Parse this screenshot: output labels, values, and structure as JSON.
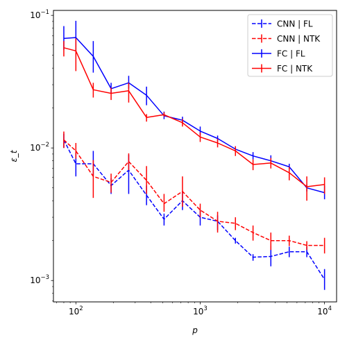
{
  "chart_data": {
    "type": "line",
    "title": "",
    "xlabel": "p",
    "ylabel": "ε_t",
    "xscale": "log",
    "yscale": "log",
    "xlim": [
      66,
      12500
    ],
    "ylim": [
      0.00069,
      0.109
    ],
    "x_ticks": [
      {
        "value": 100,
        "base": "10",
        "exp": "2"
      },
      {
        "value": 1000,
        "base": "10",
        "exp": "3"
      },
      {
        "value": 10000,
        "base": "10",
        "exp": "4"
      }
    ],
    "y_ticks": [
      {
        "value": 0.001,
        "base": "10",
        "exp": "−3"
      },
      {
        "value": 0.01,
        "base": "10",
        "exp": "−2"
      },
      {
        "value": 0.1,
        "base": "10",
        "exp": "−1"
      }
    ],
    "legend_position": "top-right",
    "grid": false,
    "x": [
      80,
      100,
      138,
      192,
      266,
      370,
      512,
      720,
      1000,
      1380,
      1920,
      2660,
      3700,
      5200,
      7200,
      10000
    ],
    "series": [
      {
        "name": "CNN | FL",
        "color": "#0000ff",
        "linestyle": "dashed",
        "values": [
          0.0115,
          0.0076,
          0.0076,
          0.0052,
          0.0068,
          0.0044,
          0.0029,
          0.004,
          0.003,
          0.0028,
          0.002,
          0.0015,
          0.00152,
          0.00165,
          0.00165,
          0.00102
        ],
        "err_low": [
          0.01,
          0.0061,
          0.0062,
          0.0045,
          0.0045,
          0.0037,
          0.0026,
          0.0034,
          0.0026,
          0.0024,
          0.0019,
          0.00141,
          0.00128,
          0.0015,
          0.0015,
          0.00085
        ],
        "err_high": [
          0.0128,
          0.0092,
          0.0095,
          0.0059,
          0.0089,
          0.0052,
          0.0032,
          0.0047,
          0.0034,
          0.0031,
          0.0021,
          0.00158,
          0.00182,
          0.0018,
          0.0018,
          0.00122
        ]
      },
      {
        "name": "CNN | NTK",
        "color": "#ff0000",
        "linestyle": "dashed",
        "values": [
          0.0115,
          0.0095,
          0.0061,
          0.0055,
          0.0079,
          0.0057,
          0.0038,
          0.0047,
          0.0034,
          0.0028,
          0.0027,
          0.0023,
          0.002,
          0.002,
          0.00184,
          0.00184
        ],
        "err_low": [
          0.01,
          0.0083,
          0.0042,
          0.0046,
          0.0068,
          0.0045,
          0.0033,
          0.0036,
          0.003,
          0.0023,
          0.0024,
          0.002,
          0.0017,
          0.00182,
          0.0017,
          0.0016
        ],
        "err_high": [
          0.0133,
          0.0109,
          0.0081,
          0.0064,
          0.0091,
          0.0073,
          0.0045,
          0.0061,
          0.0038,
          0.0033,
          0.003,
          0.0026,
          0.0023,
          0.00218,
          0.00198,
          0.0021
        ]
      },
      {
        "name": "FC | FL",
        "color": "#0000ff",
        "linestyle": "solid",
        "values": [
          0.067,
          0.068,
          0.049,
          0.028,
          0.031,
          0.025,
          0.0175,
          0.0162,
          0.0134,
          0.0118,
          0.0098,
          0.0087,
          0.008,
          0.0072,
          0.005,
          0.0046
        ],
        "err_low": [
          0.055,
          0.054,
          0.037,
          0.026,
          0.028,
          0.021,
          0.0165,
          0.0152,
          0.0125,
          0.0112,
          0.0094,
          0.0082,
          0.0074,
          0.0066,
          0.0047,
          0.0041
        ],
        "err_high": [
          0.083,
          0.091,
          0.064,
          0.031,
          0.035,
          0.029,
          0.0188,
          0.0172,
          0.0145,
          0.0124,
          0.0103,
          0.0093,
          0.0088,
          0.0076,
          0.0053,
          0.0052
        ]
      },
      {
        "name": "FC | NTK",
        "color": "#ff0000",
        "linestyle": "solid",
        "values": [
          0.057,
          0.054,
          0.0275,
          0.0258,
          0.027,
          0.017,
          0.0178,
          0.0155,
          0.0121,
          0.0109,
          0.0095,
          0.0075,
          0.0077,
          0.0065,
          0.0051,
          0.0053
        ],
        "err_low": [
          0.049,
          0.038,
          0.024,
          0.023,
          0.022,
          0.0158,
          0.0172,
          0.0145,
          0.0111,
          0.0101,
          0.0087,
          0.0068,
          0.007,
          0.0057,
          0.004,
          0.0045
        ],
        "err_high": [
          0.064,
          0.067,
          0.031,
          0.0285,
          0.031,
          0.018,
          0.0186,
          0.0165,
          0.0131,
          0.0117,
          0.0103,
          0.0082,
          0.0084,
          0.0072,
          0.0061,
          0.006
        ]
      }
    ]
  }
}
